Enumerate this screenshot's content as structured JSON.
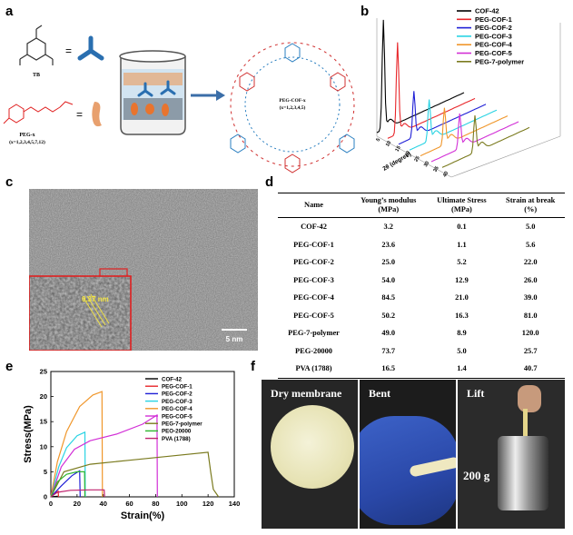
{
  "panels": {
    "a": "a",
    "b": "b",
    "c": "c",
    "d": "d",
    "e": "e",
    "f": "f"
  },
  "schematic": {
    "tb_label": "TB",
    "peg_label": "PEG-x",
    "peg_range": "(x=1,2,3,4,5,7,12)",
    "eq1": "=",
    "eq2": "=",
    "cof_label": "PEG-COF-x",
    "cof_range": "(x=1,2,3,4,5)"
  },
  "xrd": {
    "legend": [
      "COF-42",
      "PEG-COF-1",
      "PEG-COF-2",
      "PEG-COF-3",
      "PEG-COF-4",
      "PEG-COF-5",
      "PEG-7-polymer"
    ],
    "colors": [
      "#000000",
      "#e8262a",
      "#1f1fd6",
      "#29d3e3",
      "#f0962a",
      "#d22fd6",
      "#7a7a1e"
    ],
    "axis_label": "2θ (degree)",
    "ticks": [
      "5",
      "10",
      "15",
      "20",
      "25",
      "30",
      "35",
      "40"
    ]
  },
  "tem": {
    "spacing": "0.37 nm",
    "scale": "5 nm"
  },
  "table": {
    "headers": [
      "Name",
      "Young’s modulus\n(MPa)",
      "Ultimate Stress\n(MPa)",
      "Strain at break\n(%)"
    ],
    "rows": [
      [
        "COF-42",
        "3.2",
        "0.1",
        "5.0"
      ],
      [
        "PEG-COF-1",
        "23.6",
        "1.1",
        "5.6"
      ],
      [
        "PEG-COF-2",
        "25.0",
        "5.2",
        "22.0"
      ],
      [
        "PEG-COF-3",
        "54.0",
        "12.9",
        "26.0"
      ],
      [
        "PEG-COF-4",
        "84.5",
        "21.0",
        "39.0"
      ],
      [
        "PEG-COF-5",
        "50.2",
        "16.3",
        "81.0"
      ],
      [
        "PEG-7-polymer",
        "49.0",
        "8.9",
        "120.0"
      ],
      [
        "PEG-20000",
        "73.7",
        "5.0",
        "25.7"
      ],
      [
        "PVA (1788)",
        "16.5",
        "1.4",
        "40.7"
      ]
    ]
  },
  "chart_data": {
    "type": "line",
    "title": "",
    "xlabel": "Strain(%)",
    "ylabel": "Stress(MPa)",
    "xlim": [
      0,
      140
    ],
    "ylim": [
      0,
      25
    ],
    "xticks": [
      0,
      20,
      40,
      60,
      80,
      100,
      120,
      140
    ],
    "yticks": [
      0,
      5,
      10,
      15,
      20,
      25
    ],
    "legend_position": "top-right",
    "series": [
      {
        "name": "COF-42",
        "color": "#000000",
        "points": [
          [
            0,
            0
          ],
          [
            2,
            0.05
          ],
          [
            5,
            0.1
          ],
          [
            5.2,
            0
          ]
        ]
      },
      {
        "name": "PEG-COF-1",
        "color": "#e8262a",
        "points": [
          [
            0,
            0
          ],
          [
            2,
            0.6
          ],
          [
            5.6,
            1.1
          ],
          [
            5.8,
            0
          ]
        ]
      },
      {
        "name": "PEG-COF-2",
        "color": "#1f1fd6",
        "points": [
          [
            0,
            0
          ],
          [
            8,
            2.2
          ],
          [
            16,
            4.2
          ],
          [
            22,
            5.2
          ],
          [
            22.4,
            0
          ]
        ]
      },
      {
        "name": "PEG-COF-3",
        "color": "#29d3e3",
        "points": [
          [
            0,
            0
          ],
          [
            6,
            6
          ],
          [
            12,
            9.8
          ],
          [
            20,
            12.2
          ],
          [
            26,
            12.9
          ],
          [
            26.3,
            0
          ]
        ]
      },
      {
        "name": "PEG-COF-4",
        "color": "#f0962a",
        "points": [
          [
            0,
            0
          ],
          [
            5,
            7
          ],
          [
            12,
            13
          ],
          [
            22,
            18
          ],
          [
            32,
            20.3
          ],
          [
            39,
            21
          ],
          [
            39.4,
            0
          ]
        ]
      },
      {
        "name": "PEG-COF-5",
        "color": "#d22fd6",
        "points": [
          [
            0,
            0
          ],
          [
            8,
            6
          ],
          [
            18,
            9.5
          ],
          [
            30,
            11.2
          ],
          [
            50,
            12.5
          ],
          [
            70,
            14.5
          ],
          [
            81,
            16.3
          ],
          [
            81.3,
            0
          ]
        ]
      },
      {
        "name": "PEG-7-polymer",
        "color": "#7a7a1e",
        "points": [
          [
            0,
            0
          ],
          [
            10,
            5
          ],
          [
            30,
            6.5
          ],
          [
            60,
            7.3
          ],
          [
            90,
            8.1
          ],
          [
            120,
            8.9
          ],
          [
            122,
            5
          ],
          [
            124,
            1.5
          ],
          [
            128,
            0
          ]
        ]
      },
      {
        "name": "PEO-20000",
        "color": "#2fb52f",
        "points": [
          [
            0,
            0
          ],
          [
            5,
            3
          ],
          [
            12,
            4.5
          ],
          [
            20,
            5
          ],
          [
            25.7,
            5
          ],
          [
            26,
            0
          ]
        ]
      },
      {
        "name": "PVA (1788)",
        "color": "#c0236e",
        "points": [
          [
            0,
            0
          ],
          [
            5,
            0.9
          ],
          [
            15,
            1.3
          ],
          [
            30,
            1.4
          ],
          [
            40.7,
            1.4
          ],
          [
            41,
            0
          ]
        ]
      }
    ]
  },
  "photos": {
    "p1": "Dry membrane",
    "p2": "Bent",
    "p3": "Lift",
    "weight": "200 g"
  }
}
